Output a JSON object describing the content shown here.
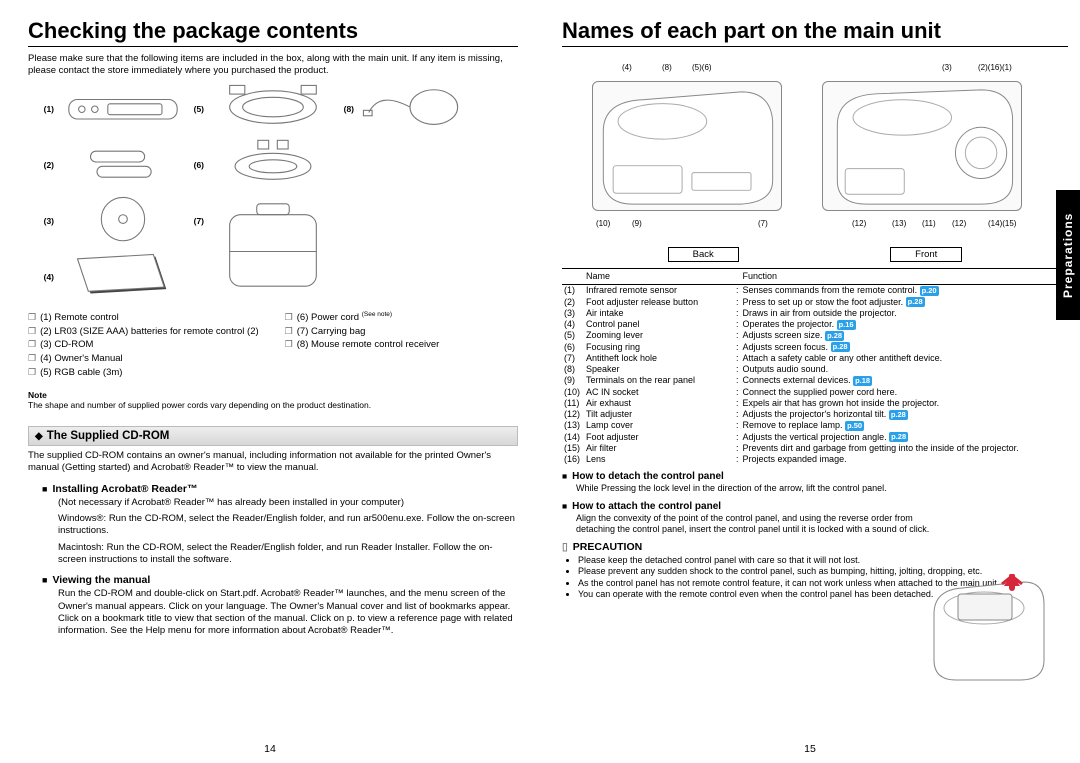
{
  "left": {
    "title": "Checking the package contents",
    "intro": "Please make sure that the following items are included in the box, along with the main unit. If any item is missing, please contact the store immediately where you purchased the product.",
    "item_nums_col1": [
      "(1)",
      "(2)",
      "(3)",
      "(4)"
    ],
    "item_nums_col2": [
      "(5)",
      "(6)",
      "(7)"
    ],
    "item_nums_col3": [
      "(8)"
    ],
    "list_col1": [
      "(1)  Remote control",
      "(2)  LR03 (SIZE AAA) batteries for remote control (2)",
      "(3)  CD-ROM",
      "(4)  Owner's Manual",
      "(5)  RGB cable (3m)"
    ],
    "list_col2": [
      "(6)  Power cord",
      "(7)  Carrying bag",
      "(8)  Mouse remote control receiver"
    ],
    "see_note": "(See note)",
    "note_hd": "Note",
    "note_body": "The shape and number of supplied power cords vary depending on the product destination.",
    "cdrom_band": "The Supplied CD-ROM",
    "cdrom_para": "The supplied CD-ROM contains an owner's manual, including information not available for the printed Owner's manual (Getting started) and Acrobat® Reader™ to view the manual.",
    "install_hd": "Installing Acrobat® Reader™",
    "install_para1": "(Not necessary if Acrobat® Reader™ has already been installed in your computer)",
    "install_win": "Windows®: Run the CD-ROM, select the Reader/English folder, and run ar500enu.exe. Follow the on-screen instructions.",
    "install_mac": "Macintosh: Run the CD-ROM, select the Reader/English folder, and run Reader Installer. Follow the on-screen instructions to install the software.",
    "view_hd": "Viewing the manual",
    "view_para": "Run the CD-ROM and double-click on Start.pdf. Acrobat® Reader™ launches, and the menu screen of the Owner's manual appears. Click on your language. The Owner's Manual cover and list of bookmarks appear. Click on a bookmark title to view that section of the manual. Click on   p.   to view a reference page with related information. See the Help menu for more information about Acrobat® Reader™.",
    "page_num": "14"
  },
  "right": {
    "title": "Names of each part on the main unit",
    "callouts_top_back": [
      "(4)",
      "(8)",
      "(5)(6)"
    ],
    "callouts_top_front": [
      "(3)",
      "(2)(16)(1)"
    ],
    "callouts_bot_back": [
      "(10)",
      "(9)",
      "(7)"
    ],
    "callouts_bot_front": [
      "(12)",
      "(13)",
      "(11)",
      "(12)",
      "(14)(15)"
    ],
    "view_back": "Back",
    "view_front": "Front",
    "th_name": "Name",
    "th_func": "Function",
    "parts": [
      {
        "n": "(1)",
        "name": "Infrared remote sensor",
        "func": "Senses commands from the remote control.",
        "ref": "p.20"
      },
      {
        "n": "(2)",
        "name": "Foot adjuster release button",
        "func": "Press to set up or stow the foot adjuster.",
        "ref": "p.28"
      },
      {
        "n": "(3)",
        "name": "Air intake",
        "func": "Draws in air from outside the projector."
      },
      {
        "n": "(4)",
        "name": "Control panel",
        "func": "Operates the projector.",
        "ref": "p.16"
      },
      {
        "n": "(5)",
        "name": "Zooming lever",
        "func": "Adjusts screen size.",
        "ref": "p.28"
      },
      {
        "n": "(6)",
        "name": "Focusing ring",
        "func": "Adjusts screen focus.",
        "ref": "p.28"
      },
      {
        "n": "(7)",
        "name": "Antitheft lock hole",
        "func": "Attach a safety cable or any other antitheft device."
      },
      {
        "n": "(8)",
        "name": "Speaker",
        "func": "Outputs audio sound."
      },
      {
        "n": "(9)",
        "name": "Terminals on the rear panel",
        "func": "Connects external devices.",
        "ref": "p.18"
      },
      {
        "n": "(10)",
        "name": "AC IN socket",
        "func": "Connect the supplied power cord here."
      },
      {
        "n": "(11)",
        "name": "Air exhaust",
        "func": "Expels air that has grown hot inside the projector."
      },
      {
        "n": "(12)",
        "name": "Tilt adjuster",
        "func": "Adjusts the projector's horizontal tilt.",
        "ref": "p.28"
      },
      {
        "n": "(13)",
        "name": "Lamp cover",
        "func": "Remove to replace lamp.",
        "ref": "p.50"
      },
      {
        "n": "(14)",
        "name": "Foot adjuster",
        "func": "Adjusts the vertical projection angle.",
        "ref": "p.28"
      },
      {
        "n": "(15)",
        "name": "Air filter",
        "func": "Prevents dirt and garbage from getting into the inside of the projector."
      },
      {
        "n": "(16)",
        "name": "Lens",
        "func": "Projects expanded image."
      }
    ],
    "detach_hd": "How to detach the control panel",
    "detach_body": "While Pressing the lock level in the direction of the arrow, lift the control panel.",
    "attach_hd": "How to attach the control panel",
    "attach_body": "Align the convexity of the point of the control panel, and using the reverse order from detaching the control panel, insert the control panel until it is locked with a sound of click.",
    "prec_hd": "PRECAUTION",
    "prec": [
      "Please keep the detached control panel with care so that it will not lost.",
      "Please prevent any sudden shock to the control panel, such as bumping, hitting, jolting, dropping, etc.",
      "As the control panel has not remote control feature, it can not work unless when attached to the main unit.",
      "You can operate with the remote control even when the control panel has been detached."
    ],
    "tab": "Preparations",
    "page_num": "15"
  },
  "colors": {
    "pageref_bg": "#2aa0e8",
    "tab_bg": "#000000",
    "arrow": "#d6283a"
  }
}
